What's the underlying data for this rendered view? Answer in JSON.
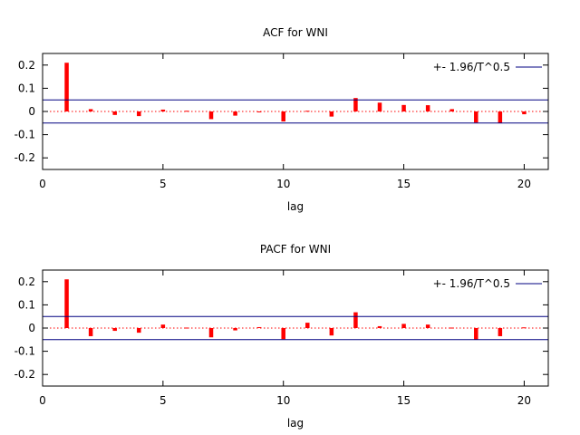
{
  "chart_data": [
    {
      "type": "bar",
      "title": "ACF for WNI",
      "xlabel": "lag",
      "ylabel": "",
      "xlim": [
        0,
        21
      ],
      "ylim": [
        -0.25,
        0.25
      ],
      "xticks": [
        0,
        5,
        10,
        15,
        20
      ],
      "yticks": [
        -0.2,
        -0.1,
        0,
        0.1,
        0.2
      ],
      "ytick_labels": [
        "-0.2",
        "-0.1",
        "0",
        "0.1",
        "0.2"
      ],
      "xtick_labels": [
        "0",
        "5",
        "10",
        "15",
        "20"
      ],
      "bar_color": "#ff0000",
      "band_color": "#000080",
      "zero_line_color": "#ff0000",
      "band": 0.05,
      "legend": {
        "label": "+- 1.96/T^0.5",
        "position": "top-right"
      },
      "lags": [
        1,
        2,
        3,
        4,
        5,
        6,
        7,
        8,
        9,
        10,
        11,
        12,
        13,
        14,
        15,
        16,
        17,
        18,
        19,
        20
      ],
      "values": [
        0.21,
        0.01,
        -0.015,
        -0.02,
        0.008,
        0.003,
        -0.033,
        -0.018,
        -0.002,
        -0.043,
        0.003,
        -0.022,
        0.058,
        0.038,
        0.028,
        0.027,
        0.01,
        -0.048,
        -0.05,
        -0.012
      ]
    },
    {
      "type": "bar",
      "title": "PACF for WNI",
      "xlabel": "lag",
      "ylabel": "",
      "xlim": [
        0,
        21
      ],
      "ylim": [
        -0.25,
        0.25
      ],
      "xticks": [
        0,
        5,
        10,
        15,
        20
      ],
      "yticks": [
        -0.2,
        -0.1,
        0,
        0.1,
        0.2
      ],
      "ytick_labels": [
        "-0.2",
        "-0.1",
        "0",
        "0.1",
        "0.2"
      ],
      "xtick_labels": [
        "0",
        "5",
        "10",
        "15",
        "20"
      ],
      "bar_color": "#ff0000",
      "band_color": "#000080",
      "zero_line_color": "#ff0000",
      "band": 0.05,
      "legend": {
        "label": "+- 1.96/T^0.5",
        "position": "top-right"
      },
      "lags": [
        1,
        2,
        3,
        4,
        5,
        6,
        7,
        8,
        9,
        10,
        11,
        12,
        13,
        14,
        15,
        16,
        17,
        18,
        19,
        20
      ],
      "values": [
        0.21,
        -0.035,
        -0.012,
        -0.02,
        0.015,
        0.002,
        -0.04,
        -0.01,
        0.004,
        -0.048,
        0.023,
        -0.032,
        0.068,
        0.008,
        0.018,
        0.015,
        0.002,
        -0.05,
        -0.035,
        0.003
      ]
    }
  ]
}
